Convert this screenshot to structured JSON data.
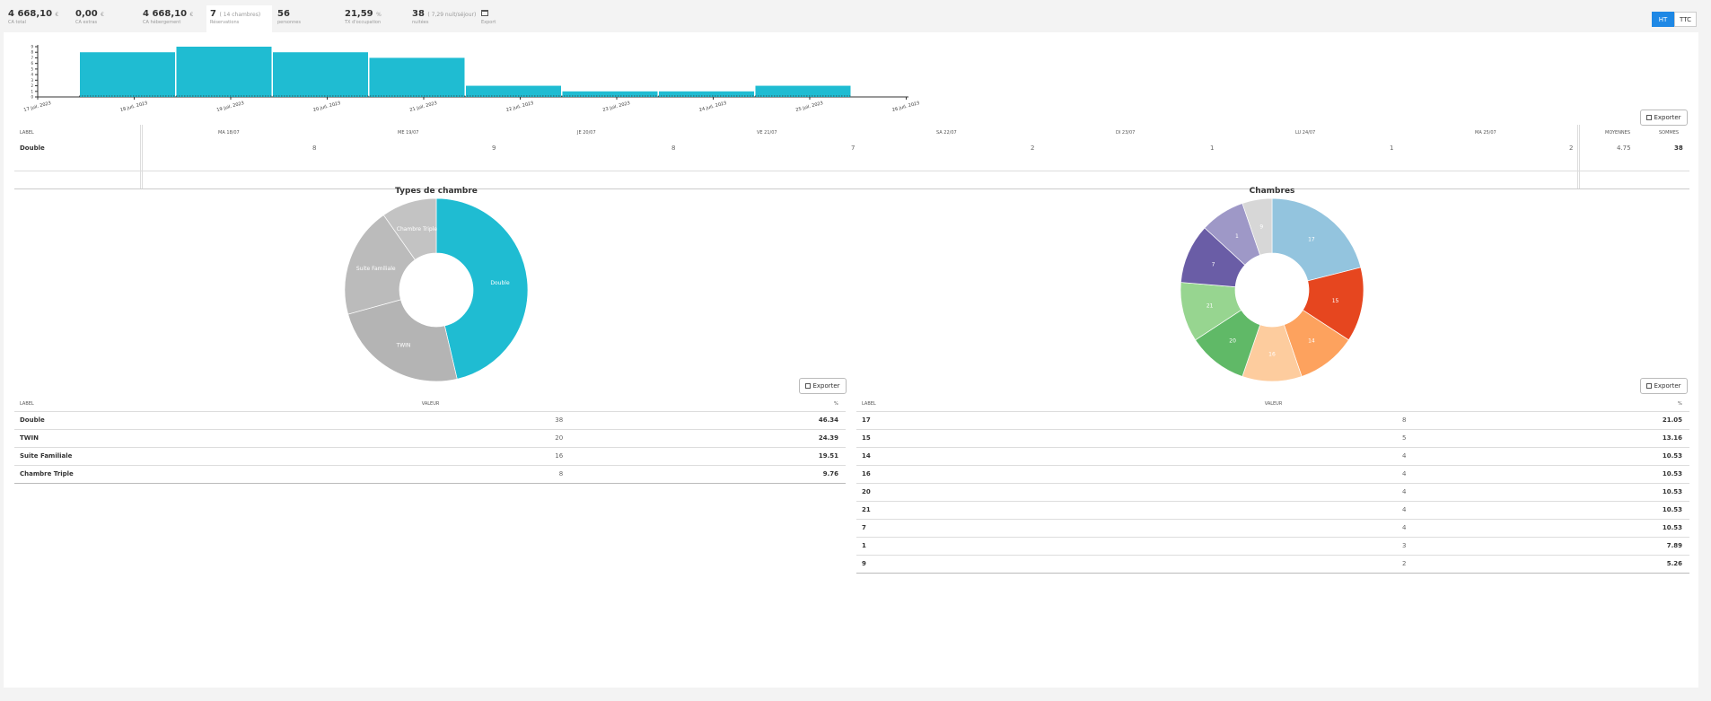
{
  "stats": [
    {
      "value": "4 668,10",
      "unit": "€",
      "label": "CA total"
    },
    {
      "value": "0,00",
      "unit": "€",
      "label": "CA extras"
    },
    {
      "value": "4 668,10",
      "unit": "€",
      "label": "CA hébergement"
    },
    {
      "value": "7",
      "unit": "( 14 chambres)",
      "label": "Réservations"
    },
    {
      "value": "56",
      "unit": "",
      "label": "personnes"
    },
    {
      "value": "21,59",
      "unit": "%",
      "label": "TX d'occupation"
    },
    {
      "value": "38",
      "unit": "( 7,29 nuit/séjour)",
      "label": "nuitées"
    },
    {
      "value": "",
      "unit": "",
      "label": "Export"
    }
  ],
  "toggle": {
    "ht": "HT",
    "ttc": "TTC"
  },
  "bar_chart": {
    "type": "bar",
    "x_ticks": [
      "17 juil. 2023",
      "18 juil. 2023",
      "19 juil. 2023",
      "20 juil. 2023",
      "21 juil. 2023",
      "22 juil. 2023",
      "23 juil. 2023",
      "24 juil. 2023",
      "25 juil. 2023",
      "26 juil. 2023"
    ],
    "y_ticks": [
      "0",
      "1",
      "2",
      "3",
      "4",
      "5",
      "6",
      "7",
      "8",
      "9"
    ],
    "values": [
      8,
      9,
      8,
      7,
      2,
      1,
      1,
      2
    ],
    "ylim": [
      0,
      9
    ]
  },
  "export_label": "Exporter",
  "daily_table": {
    "headers": [
      "LABEL",
      "MA 18/07",
      "ME 19/07",
      "JE 20/07",
      "VE 21/07",
      "SA 22/07",
      "DI 23/07",
      "LU 24/07",
      "MA 25/07",
      "MOYENNES",
      "SOMMES"
    ],
    "rows": [
      {
        "label": "Double",
        "values": [
          "8",
          "9",
          "8",
          "7",
          "2",
          "1",
          "1",
          "2"
        ],
        "avg": "4.75",
        "sum": "38"
      }
    ]
  },
  "chart_data": [
    {
      "type": "pie",
      "title": "Types de chambre",
      "labels": [
        "Double",
        "TWIN",
        "Suite Familiale",
        "Chambre Triple"
      ],
      "values": [
        38,
        20,
        16,
        8
      ],
      "colors": [
        "#1fbcd2",
        "#b4b4b4",
        "#bbbbbb",
        "#c3c3c3"
      ]
    },
    {
      "type": "pie",
      "title": "Chambres",
      "labels": [
        "17",
        "15",
        "14",
        "16",
        "20",
        "21",
        "7",
        "1",
        "9"
      ],
      "values": [
        8,
        5,
        4,
        4,
        4,
        4,
        4,
        3,
        2
      ],
      "colors": [
        "#93c4de",
        "#e6461f",
        "#fda25e",
        "#fdcc9e",
        "#60b967",
        "#97d590",
        "#6a5da6",
        "#9e98c7",
        "#d7d7d7"
      ]
    }
  ],
  "types_table": {
    "headers": [
      "LABEL",
      "VALEUR",
      "%"
    ],
    "rows": [
      {
        "label": "Double",
        "value": "38",
        "pct": "46.34"
      },
      {
        "label": "TWIN",
        "value": "20",
        "pct": "24.39"
      },
      {
        "label": "Suite Familiale",
        "value": "16",
        "pct": "19.51"
      },
      {
        "label": "Chambre Triple",
        "value": "8",
        "pct": "9.76"
      }
    ]
  },
  "rooms_table": {
    "headers": [
      "LABEL",
      "VALEUR",
      "%"
    ],
    "rows": [
      {
        "label": "17",
        "value": "8",
        "pct": "21.05"
      },
      {
        "label": "15",
        "value": "5",
        "pct": "13.16"
      },
      {
        "label": "14",
        "value": "4",
        "pct": "10.53"
      },
      {
        "label": "16",
        "value": "4",
        "pct": "10.53"
      },
      {
        "label": "20",
        "value": "4",
        "pct": "10.53"
      },
      {
        "label": "21",
        "value": "4",
        "pct": "10.53"
      },
      {
        "label": "7",
        "value": "4",
        "pct": "10.53"
      },
      {
        "label": "1",
        "value": "3",
        "pct": "7.89"
      },
      {
        "label": "9",
        "value": "2",
        "pct": "5.26"
      }
    ]
  }
}
